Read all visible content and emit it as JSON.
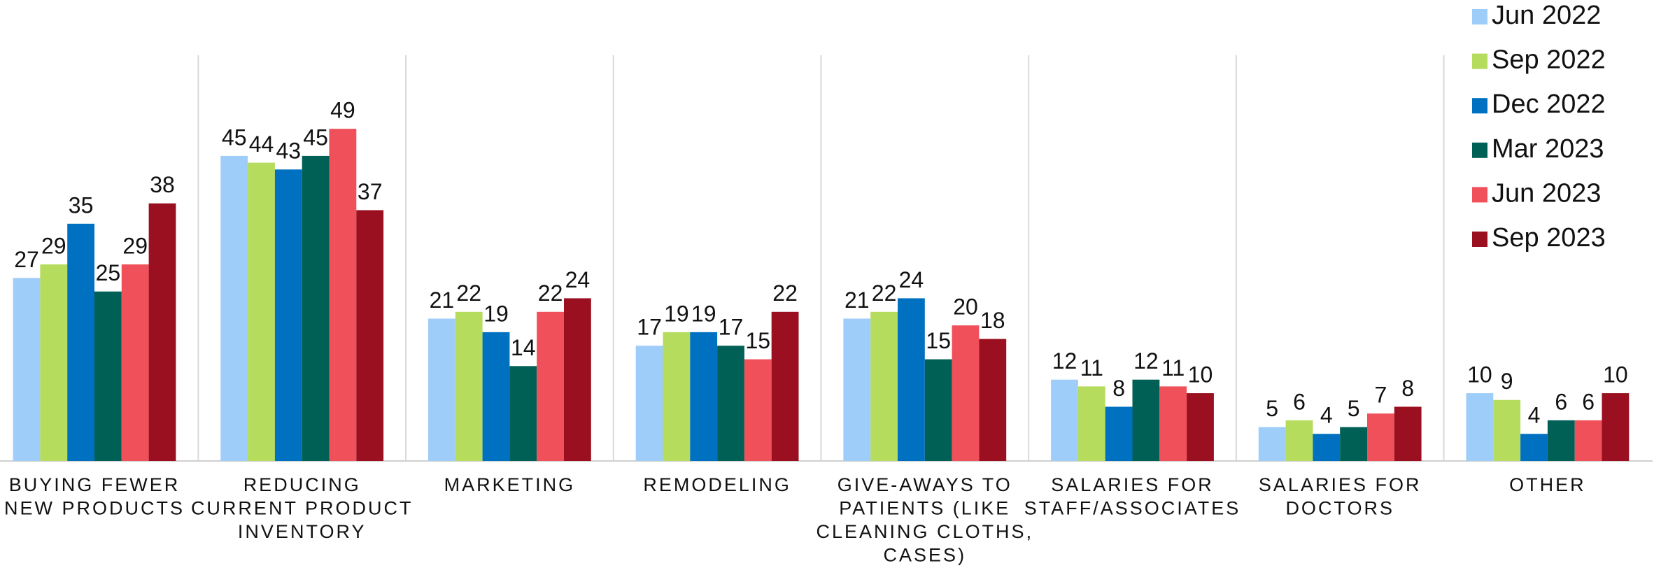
{
  "chart_data": {
    "type": "bar",
    "categories": [
      [
        "BUYING FEWER",
        "NEW PRODUCTS"
      ],
      [
        "REDUCING",
        "CURRENT PRODUCT",
        "INVENTORY"
      ],
      [
        "MARKETING"
      ],
      [
        "REMODELING"
      ],
      [
        "GIVE-AWAYS TO",
        "PATIENTS (LIKE",
        "CLEANING CLOTHS,",
        "CASES)"
      ],
      [
        "SALARIES FOR",
        "STAFF/ASSOCIATES"
      ],
      [
        "SALARIES FOR",
        "DOCTORS"
      ],
      [
        "OTHER"
      ]
    ],
    "series": [
      {
        "name": "Jun 2022",
        "color": "#9fcdf9",
        "values": [
          27,
          45,
          21,
          17,
          21,
          12,
          5,
          10
        ]
      },
      {
        "name": "Sep 2022",
        "color": "#b5dc5c",
        "values": [
          29,
          44,
          22,
          19,
          22,
          11,
          6,
          9
        ]
      },
      {
        "name": "Dec 2022",
        "color": "#0070c0",
        "values": [
          35,
          43,
          19,
          19,
          24,
          8,
          4,
          4
        ]
      },
      {
        "name": "Mar 2023",
        "color": "#006055",
        "values": [
          25,
          45,
          14,
          17,
          15,
          12,
          5,
          6
        ]
      },
      {
        "name": "Jun 2023",
        "color": "#f0505a",
        "values": [
          29,
          49,
          22,
          15,
          20,
          11,
          7,
          6
        ]
      },
      {
        "name": "Sep 2023",
        "color": "#9a1020",
        "values": [
          38,
          37,
          24,
          22,
          18,
          10,
          8,
          10
        ]
      }
    ],
    "ylim": [
      0,
      68
    ],
    "legend": "top-right"
  }
}
